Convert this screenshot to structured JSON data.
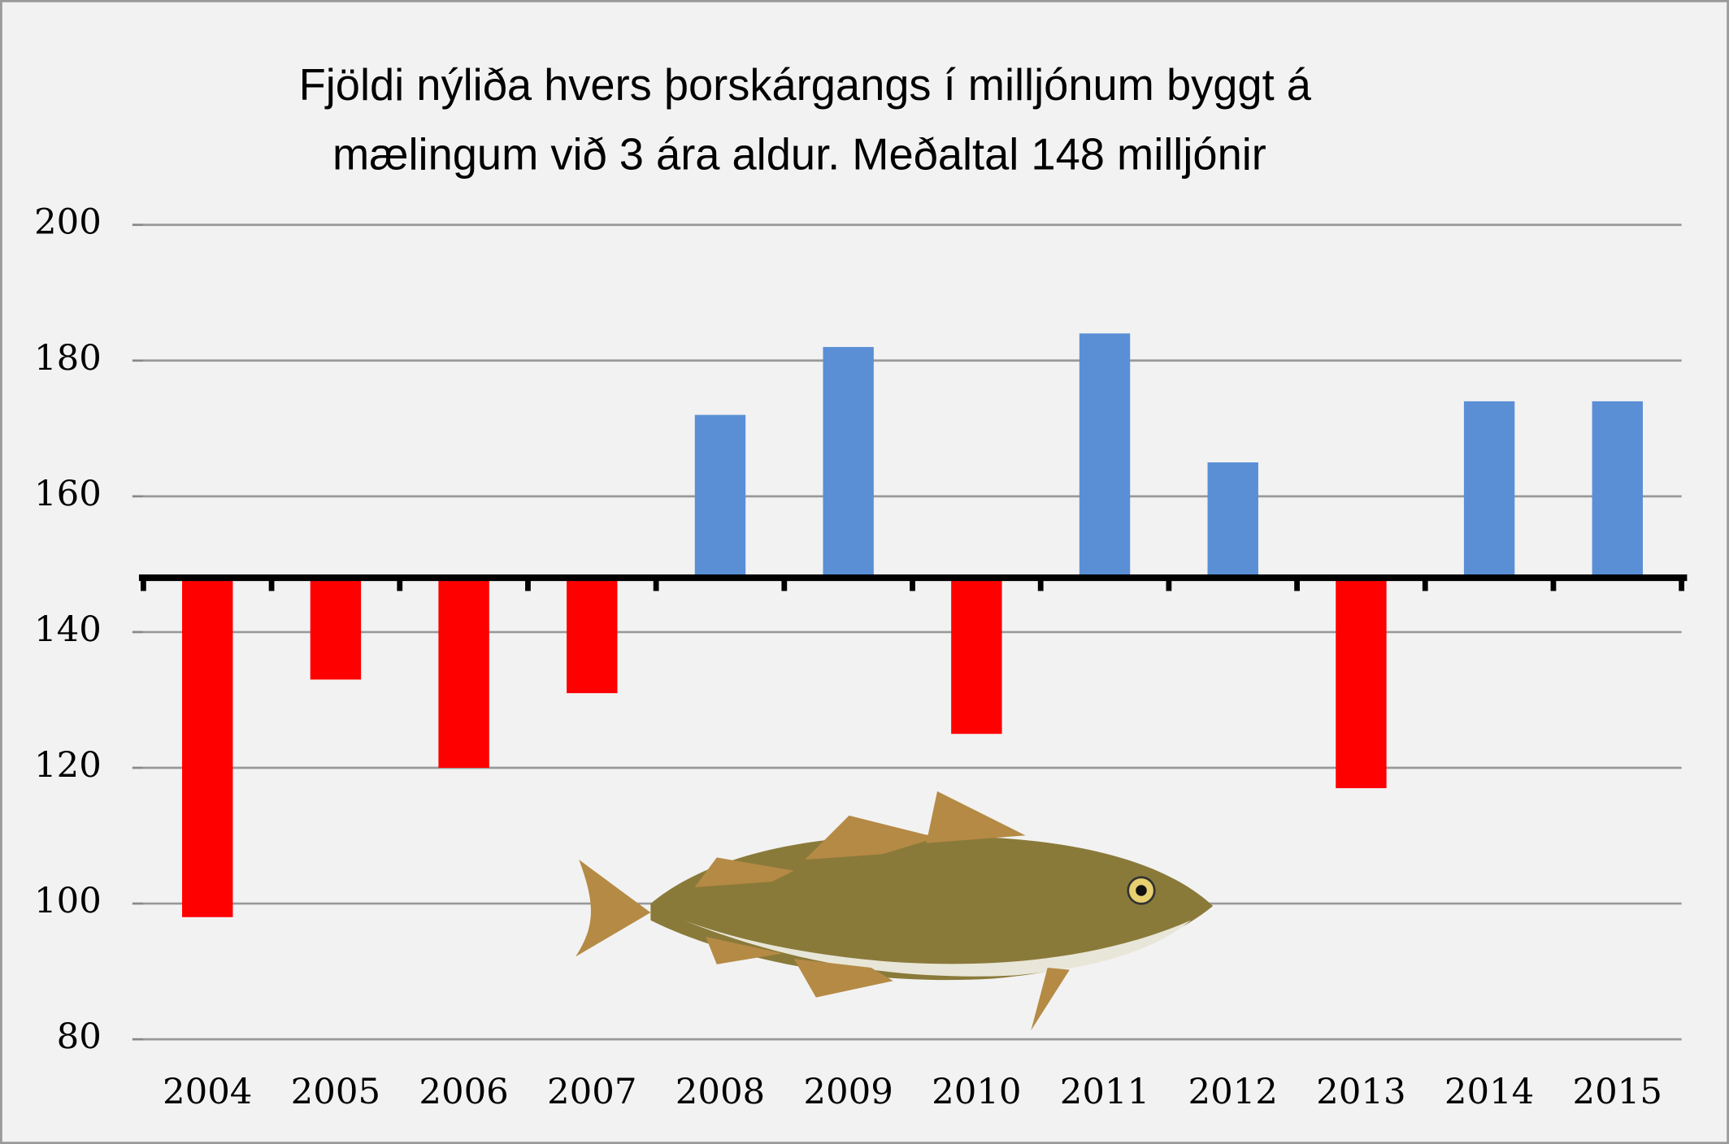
{
  "chart_data": {
    "type": "bar",
    "title": [
      "Fjöldi nýliða hvers þorskárgangs í milljónum byggt á",
      "mælingum við 3 ára aldur.  Meðaltal 148 milljónir"
    ],
    "categories": [
      "2004",
      "2005",
      "2006",
      "2007",
      "2008",
      "2009",
      "2010",
      "2011",
      "2012",
      "2013",
      "2014",
      "2015"
    ],
    "values": [
      98,
      133,
      120,
      131,
      172,
      182,
      125,
      184,
      165,
      117,
      174,
      174
    ],
    "baseline": 148,
    "color_above": "#5a8fd6",
    "color_below": "#ff0000",
    "ylim": [
      80,
      200
    ],
    "yticks": [
      80,
      100,
      120,
      140,
      160,
      180,
      200
    ],
    "grid": true
  }
}
